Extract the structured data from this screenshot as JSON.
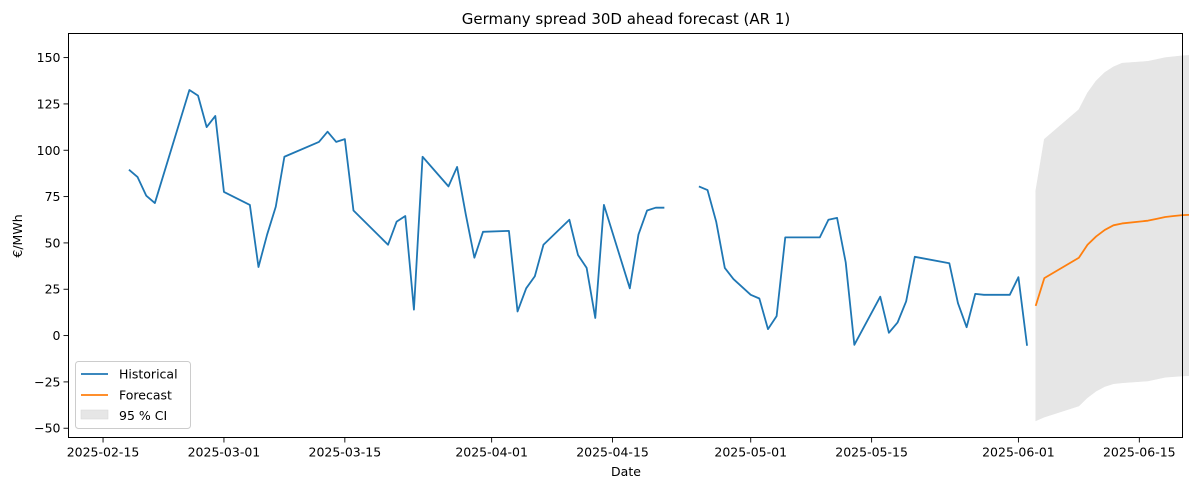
{
  "chart_data": {
    "type": "line",
    "title": "Germany spread 30D ahead forecast (AR 1)",
    "xlabel": "Date",
    "ylabel": "€/MWh",
    "xlim": [
      "2025-02-11",
      "2025-06-20"
    ],
    "ylim": [
      -55,
      163
    ],
    "x_ticks": [
      "2025-02-15",
      "2025-03-01",
      "2025-03-15",
      "2025-04-01",
      "2025-04-15",
      "2025-05-01",
      "2025-05-15",
      "2025-06-01",
      "2025-06-15"
    ],
    "y_ticks": [
      -50,
      -25,
      0,
      25,
      50,
      75,
      100,
      125,
      150
    ],
    "grid": false,
    "legend_position": "lower-left",
    "colors": {
      "historical": "#1f77b4",
      "forecast": "#ff7f0e",
      "ci": "#e6e6e6"
    },
    "series": [
      {
        "name": "Historical",
        "type": "line",
        "segments": [
          [
            [
              "2025-02-18",
              89.5
            ],
            [
              "2025-02-19",
              85.5
            ],
            [
              "2025-02-20",
              75.5
            ],
            [
              "2025-02-21",
              71.5
            ],
            [
              "2025-02-25",
              132.5
            ],
            [
              "2025-02-26",
              129.5
            ],
            [
              "2025-02-27",
              112.5
            ],
            [
              "2025-02-28",
              118.5
            ],
            [
              "2025-03-01",
              77.5
            ],
            [
              "2025-03-04",
              70.5
            ],
            [
              "2025-03-05",
              37.0
            ],
            [
              "2025-03-06",
              54.5
            ],
            [
              "2025-03-07",
              69.5
            ],
            [
              "2025-03-08",
              96.5
            ],
            [
              "2025-03-12",
              104.5
            ],
            [
              "2025-03-13",
              110.0
            ],
            [
              "2025-03-14",
              104.5
            ],
            [
              "2025-03-15",
              106.0
            ],
            [
              "2025-03-16",
              67.5
            ],
            [
              "2025-03-20",
              49.0
            ],
            [
              "2025-03-21",
              61.5
            ],
            [
              "2025-03-22",
              64.5
            ],
            [
              "2025-03-23",
              14.0
            ],
            [
              "2025-03-24",
              96.5
            ],
            [
              "2025-03-27",
              80.5
            ],
            [
              "2025-03-28",
              91.0
            ],
            [
              "2025-03-29",
              65.5
            ],
            [
              "2025-03-30",
              42.0
            ],
            [
              "2025-03-31",
              56.0
            ],
            [
              "2025-04-03",
              56.5
            ],
            [
              "2025-04-04",
              13.0
            ],
            [
              "2025-04-05",
              25.5
            ],
            [
              "2025-04-06",
              32.0
            ],
            [
              "2025-04-07",
              49.0
            ],
            [
              "2025-04-10",
              62.5
            ],
            [
              "2025-04-11",
              43.5
            ],
            [
              "2025-04-12",
              36.5
            ],
            [
              "2025-04-13",
              9.5
            ],
            [
              "2025-04-14",
              70.5
            ],
            [
              "2025-04-17",
              25.5
            ],
            [
              "2025-04-18",
              54.5
            ],
            [
              "2025-04-19",
              67.5
            ],
            [
              "2025-04-20",
              69.0
            ],
            [
              "2025-04-21",
              69.0
            ]
          ],
          [
            [
              "2025-04-25",
              80.5
            ],
            [
              "2025-04-26",
              78.5
            ],
            [
              "2025-04-27",
              61.5
            ],
            [
              "2025-04-28",
              36.5
            ],
            [
              "2025-04-29",
              30.5
            ],
            [
              "2025-05-01",
              22.0
            ],
            [
              "2025-05-02",
              20.0
            ],
            [
              "2025-05-03",
              3.5
            ],
            [
              "2025-05-04",
              10.5
            ],
            [
              "2025-05-05",
              53.0
            ],
            [
              "2025-05-09",
              53.0
            ],
            [
              "2025-05-10",
              62.5
            ],
            [
              "2025-05-11",
              63.5
            ],
            [
              "2025-05-12",
              39.5
            ],
            [
              "2025-05-13",
              -5.0
            ],
            [
              "2025-05-16",
              21.0
            ],
            [
              "2025-05-17",
              1.5
            ],
            [
              "2025-05-18",
              7.0
            ],
            [
              "2025-05-19",
              18.5
            ],
            [
              "2025-05-20",
              42.5
            ],
            [
              "2025-05-24",
              39.0
            ],
            [
              "2025-05-25",
              17.5
            ],
            [
              "2025-05-26",
              4.5
            ],
            [
              "2025-05-27",
              22.5
            ],
            [
              "2025-05-28",
              22.0
            ],
            [
              "2025-05-31",
              22.0
            ],
            [
              "2025-06-01",
              31.5
            ],
            [
              "2025-06-02",
              -5.5
            ]
          ]
        ]
      },
      {
        "name": "Forecast",
        "type": "line",
        "points": [
          [
            "2025-06-03",
            16.0
          ],
          [
            "2025-06-04",
            31.0
          ],
          [
            "2025-06-08",
            42.0
          ],
          [
            "2025-06-09",
            49.0
          ],
          [
            "2025-06-10",
            53.5
          ],
          [
            "2025-06-11",
            57.0
          ],
          [
            "2025-06-12",
            59.5
          ],
          [
            "2025-06-13",
            60.5
          ],
          [
            "2025-06-16",
            62.0
          ],
          [
            "2025-06-17",
            63.0
          ],
          [
            "2025-06-18",
            64.0
          ],
          [
            "2025-06-19",
            64.5
          ],
          [
            "2025-06-20",
            65.0
          ],
          [
            "2025-06-22",
            65.3
          ],
          [
            "2025-06-25",
            65.5
          ]
        ]
      },
      {
        "name": "95 % CI",
        "type": "area",
        "upper": [
          [
            "2025-06-03",
            78.0
          ],
          [
            "2025-06-04",
            106.0
          ],
          [
            "2025-06-08",
            122.0
          ],
          [
            "2025-06-09",
            131.0
          ],
          [
            "2025-06-10",
            137.5
          ],
          [
            "2025-06-11",
            142.0
          ],
          [
            "2025-06-12",
            145.0
          ],
          [
            "2025-06-13",
            147.0
          ],
          [
            "2025-06-16",
            148.0
          ],
          [
            "2025-06-17",
            149.0
          ],
          [
            "2025-06-18",
            150.0
          ],
          [
            "2025-06-20",
            151.0
          ],
          [
            "2025-06-22",
            151.5
          ],
          [
            "2025-06-25",
            152.0
          ]
        ],
        "lower": [
          [
            "2025-06-03",
            -46.0
          ],
          [
            "2025-06-04",
            -44.0
          ],
          [
            "2025-06-08",
            -38.0
          ],
          [
            "2025-06-09",
            -33.5
          ],
          [
            "2025-06-10",
            -30.0
          ],
          [
            "2025-06-11",
            -27.5
          ],
          [
            "2025-06-12",
            -26.0
          ],
          [
            "2025-06-13",
            -25.5
          ],
          [
            "2025-06-16",
            -24.5
          ],
          [
            "2025-06-17",
            -23.5
          ],
          [
            "2025-06-18",
            -22.5
          ],
          [
            "2025-06-20",
            -21.8
          ],
          [
            "2025-06-22",
            -21.5
          ],
          [
            "2025-06-25",
            -21.3
          ]
        ]
      }
    ],
    "legend": [
      "Historical",
      "Forecast",
      "95 % CI"
    ]
  }
}
